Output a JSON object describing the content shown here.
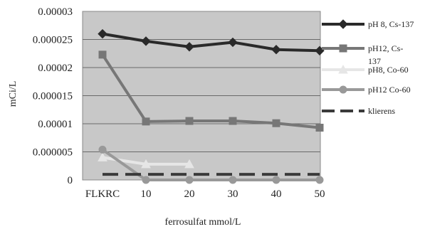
{
  "chart_data": {
    "type": "line",
    "categories": [
      "FLKRC",
      "10",
      "20",
      "30",
      "40",
      "50"
    ],
    "series": [
      {
        "name": "pH 8, Cs-137",
        "values": [
          2.6e-05,
          2.47e-05,
          2.37e-05,
          2.45e-05,
          2.32e-05,
          2.3e-05
        ],
        "color": "#2a2a2a",
        "marker": "diamond",
        "dash": "none"
      },
      {
        "name": "pH12, Cs-137",
        "values": [
          2.23e-05,
          1.04e-05,
          1.05e-05,
          1.05e-05,
          1.01e-05,
          9.3e-06
        ],
        "color": "#777777",
        "marker": "square",
        "dash": "none"
      },
      {
        "name": "pH8, Co-60",
        "values": [
          4e-06,
          2.8e-06,
          2.8e-06,
          null,
          null,
          null
        ],
        "color": "#e6e6e6",
        "marker": "triangle",
        "dash": "none"
      },
      {
        "name": "pH12 Co-60",
        "values": [
          5.4e-06,
          0.0,
          0.0,
          0.0,
          0.0,
          0.0
        ],
        "color": "#999999",
        "marker": "circle",
        "dash": "none"
      },
      {
        "name": "klierens",
        "values": [
          1e-06,
          1e-06,
          1e-06,
          1e-06,
          1e-06,
          1e-06
        ],
        "color": "#3a3a3a",
        "marker": "none",
        "dash": "dashed"
      }
    ],
    "y_ticks": [
      "0",
      "0.000005",
      "0.00001",
      "0.000015",
      "0.00002",
      "0.000025",
      "0.00003"
    ],
    "ylim": [
      0,
      3e-05
    ],
    "xlabel": "ferrosulfat mmol/L",
    "ylabel": "mCi/L",
    "grid": true,
    "legend_position": "right",
    "plot_background": "#c8c8c8"
  }
}
